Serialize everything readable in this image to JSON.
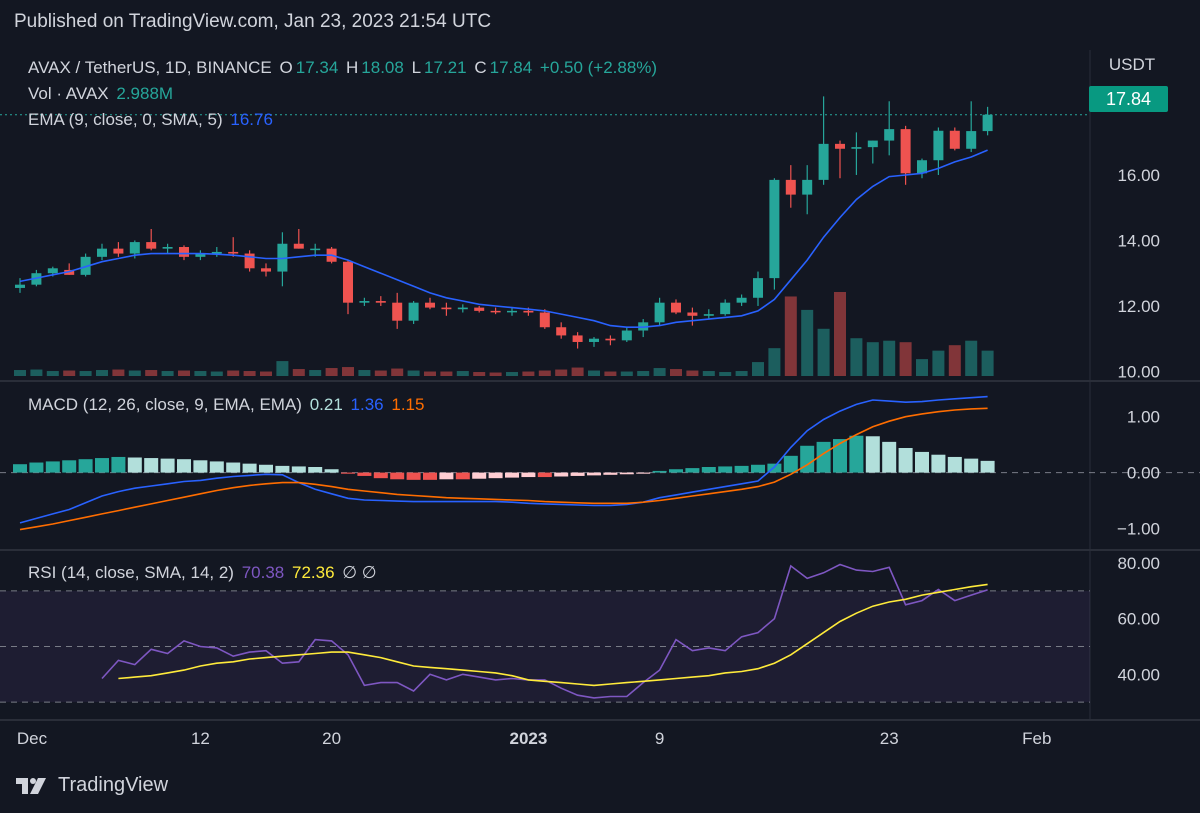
{
  "header": {
    "published": "Published on TradingView.com, Jan 23, 2023 21:54 UTC"
  },
  "brand": {
    "name": "TradingView"
  },
  "price_axis_unit": "USDT",
  "last_price_tag": "17.84",
  "colors": {
    "background": "#131722",
    "up": "#26a69a",
    "down": "#ef5350",
    "ema": "#2962ff",
    "macd_line": "#2962ff",
    "signal_line": "#ff6d00",
    "rsi": "#7e57c2",
    "rsi_ma": "#ffeb3b",
    "hist_pos_strong": "#26a69a",
    "hist_pos_weak": "#b2dfdb",
    "hist_neg_strong": "#ef5350",
    "hist_neg_weak": "#ffcdd2"
  },
  "legend": {
    "symbol": "AVAX / TetherUS, 1D, BINANCE",
    "o_label": "O",
    "o": "17.34",
    "h_label": "H",
    "h": "18.08",
    "l_label": "L",
    "l": "17.21",
    "c_label": "C",
    "c": "17.84",
    "change": "+0.50 (+2.88%)",
    "vol_label": "Vol · AVAX",
    "vol": "2.988M",
    "ema_label": "EMA (9, close, 0, SMA, 5)",
    "ema": "16.76",
    "macd_label": "MACD (12, 26, close, 9, EMA, EMA)",
    "macd_hist": "0.21",
    "macd_line": "1.36",
    "macd_signal": "1.15",
    "rsi_label": "RSI (14, close, SMA, 14, 2)",
    "rsi": "70.38",
    "rsi_ma": "72.36",
    "rsi_extra": "∅ ∅"
  },
  "chart_data": [
    {
      "type": "candlestick",
      "title": "AVAX / TetherUS, 1D, BINANCE",
      "x_ticks": [
        {
          "label": "Dec",
          "index": 0,
          "bold": false
        },
        {
          "label": "12",
          "index": 11,
          "bold": false
        },
        {
          "label": "20",
          "index": 19,
          "bold": false
        },
        {
          "label": "2023",
          "index": 31,
          "bold": true
        },
        {
          "label": "9",
          "index": 39,
          "bold": false
        },
        {
          "label": "23",
          "index": 53,
          "bold": false
        },
        {
          "label": "Feb",
          "index": 62,
          "bold": false
        }
      ],
      "y_ticks": [
        "16.00",
        "14.00",
        "12.00",
        "10.00"
      ],
      "ylim": [
        9.8,
        18.9
      ],
      "candles": [
        [
          12.55,
          12.85,
          12.4,
          12.65
        ],
        [
          12.65,
          13.1,
          12.6,
          13.0
        ],
        [
          13.0,
          13.2,
          12.9,
          13.15
        ],
        [
          13.1,
          13.3,
          12.95,
          12.95
        ],
        [
          12.95,
          13.6,
          12.9,
          13.5
        ],
        [
          13.5,
          13.9,
          13.4,
          13.75
        ],
        [
          13.75,
          13.95,
          13.5,
          13.6
        ],
        [
          13.6,
          14.0,
          13.45,
          13.95
        ],
        [
          13.95,
          14.35,
          13.7,
          13.75
        ],
        [
          13.75,
          13.9,
          13.6,
          13.8
        ],
        [
          13.8,
          13.85,
          13.4,
          13.5
        ],
        [
          13.5,
          13.7,
          13.4,
          13.6
        ],
        [
          13.6,
          13.8,
          13.5,
          13.65
        ],
        [
          13.65,
          14.1,
          13.5,
          13.6
        ],
        [
          13.6,
          13.7,
          13.05,
          13.15
        ],
        [
          13.15,
          13.3,
          12.9,
          13.05
        ],
        [
          13.05,
          14.25,
          12.6,
          13.9
        ],
        [
          13.9,
          14.35,
          13.75,
          13.75
        ],
        [
          13.75,
          13.9,
          13.5,
          13.75
        ],
        [
          13.75,
          13.8,
          13.3,
          13.35
        ],
        [
          13.35,
          13.4,
          11.75,
          12.1
        ],
        [
          12.1,
          12.25,
          12.0,
          12.15
        ],
        [
          12.15,
          12.3,
          12.0,
          12.1
        ],
        [
          12.1,
          12.4,
          11.3,
          11.55
        ],
        [
          11.55,
          12.15,
          11.45,
          12.1
        ],
        [
          12.1,
          12.25,
          11.9,
          11.95
        ],
        [
          11.95,
          12.1,
          11.7,
          11.9
        ],
        [
          11.9,
          12.05,
          11.8,
          11.95
        ],
        [
          11.95,
          12.0,
          11.8,
          11.85
        ],
        [
          11.85,
          11.95,
          11.75,
          11.82
        ],
        [
          11.82,
          11.95,
          11.7,
          11.85
        ],
        [
          11.85,
          11.95,
          11.7,
          11.8
        ],
        [
          11.8,
          11.9,
          11.3,
          11.35
        ],
        [
          11.35,
          11.5,
          11.0,
          11.1
        ],
        [
          11.1,
          11.2,
          10.7,
          10.9
        ],
        [
          10.9,
          11.05,
          10.75,
          11.0
        ],
        [
          11.0,
          11.1,
          10.8,
          10.95
        ],
        [
          10.95,
          11.35,
          10.9,
          11.25
        ],
        [
          11.25,
          11.6,
          11.05,
          11.5
        ],
        [
          11.5,
          12.25,
          11.4,
          12.1
        ],
        [
          12.1,
          12.2,
          11.75,
          11.8
        ],
        [
          11.8,
          11.95,
          11.4,
          11.7
        ],
        [
          11.7,
          11.9,
          11.6,
          11.75
        ],
        [
          11.75,
          12.2,
          11.7,
          12.1
        ],
        [
          12.1,
          12.35,
          12.0,
          12.25
        ],
        [
          12.25,
          13.05,
          12.0,
          12.85
        ],
        [
          12.85,
          15.9,
          12.5,
          15.85
        ],
        [
          15.85,
          16.3,
          15.0,
          15.4
        ],
        [
          15.4,
          16.3,
          14.8,
          15.85
        ],
        [
          15.85,
          18.4,
          15.7,
          16.95
        ],
        [
          16.95,
          17.05,
          15.9,
          16.8
        ],
        [
          16.8,
          17.3,
          16.0,
          16.85
        ],
        [
          16.85,
          17.05,
          16.35,
          17.05
        ],
        [
          17.05,
          18.25,
          16.6,
          17.4
        ],
        [
          17.4,
          17.5,
          15.7,
          16.05
        ],
        [
          16.05,
          16.5,
          15.9,
          16.45
        ],
        [
          16.45,
          17.45,
          16.0,
          17.35
        ],
        [
          17.35,
          17.45,
          16.75,
          16.8
        ],
        [
          16.8,
          18.25,
          16.7,
          17.34
        ],
        [
          17.34,
          18.08,
          17.21,
          17.84
        ]
      ]
    },
    {
      "type": "line",
      "name": "EMA (9, close, 0, SMA, 5)",
      "values": [
        12.75,
        12.85,
        12.95,
        13.05,
        13.2,
        13.35,
        13.45,
        13.55,
        13.6,
        13.6,
        13.6,
        13.6,
        13.58,
        13.55,
        13.5,
        13.45,
        13.45,
        13.5,
        13.55,
        13.55,
        13.4,
        13.2,
        13.0,
        12.8,
        12.6,
        12.4,
        12.25,
        12.15,
        12.05,
        12.0,
        11.95,
        11.9,
        11.85,
        11.75,
        11.65,
        11.55,
        11.4,
        11.35,
        11.35,
        11.4,
        11.5,
        11.55,
        11.6,
        11.65,
        11.7,
        11.85,
        12.2,
        12.8,
        13.4,
        14.1,
        14.7,
        15.25,
        15.65,
        15.95,
        16.0,
        16.05,
        16.2,
        16.4,
        16.55,
        16.76
      ]
    },
    {
      "type": "bar",
      "name": "Vol · AVAX",
      "values": [
        1.2,
        1.3,
        1.0,
        1.1,
        1.0,
        1.2,
        1.3,
        1.1,
        1.2,
        1.0,
        1.1,
        1.0,
        0.9,
        1.1,
        1.0,
        0.9,
        3.0,
        1.4,
        1.2,
        1.6,
        1.8,
        1.2,
        1.1,
        1.5,
        1.1,
        0.9,
        0.9,
        1.0,
        0.8,
        0.7,
        0.8,
        0.9,
        1.1,
        1.3,
        1.7,
        1.1,
        0.9,
        0.9,
        1.0,
        1.6,
        1.4,
        1.1,
        1.0,
        0.8,
        1.0,
        2.8,
        5.6,
        16.0,
        13.3,
        9.5,
        16.9,
        7.6,
        6.8,
        7.1,
        6.8,
        3.4,
        5.1,
        6.2,
        7.1,
        5.1
      ],
      "max_label": "2.988M"
    },
    {
      "type": "histogram_lines",
      "name": "MACD (12, 26, close, 9, EMA, EMA)",
      "y_ticks": [
        "1.00",
        "0.00",
        "-1.00"
      ],
      "ylim": [
        -1.35,
        1.55
      ],
      "histogram": [
        0.15,
        0.18,
        0.2,
        0.22,
        0.24,
        0.26,
        0.28,
        0.27,
        0.26,
        0.25,
        0.24,
        0.22,
        0.2,
        0.18,
        0.16,
        0.14,
        0.12,
        0.11,
        0.1,
        0.06,
        -0.02,
        -0.06,
        -0.1,
        -0.12,
        -0.13,
        -0.13,
        -0.12,
        -0.12,
        -0.11,
        -0.1,
        -0.09,
        -0.08,
        -0.08,
        -0.07,
        -0.06,
        -0.05,
        -0.04,
        -0.03,
        -0.02,
        0.03,
        0.06,
        0.08,
        0.1,
        0.11,
        0.12,
        0.14,
        0.16,
        0.3,
        0.48,
        0.55,
        0.6,
        0.66,
        0.65,
        0.55,
        0.44,
        0.37,
        0.32,
        0.28,
        0.25,
        0.21
      ],
      "macd": [
        -0.9,
        -0.82,
        -0.74,
        -0.66,
        -0.54,
        -0.42,
        -0.34,
        -0.28,
        -0.24,
        -0.2,
        -0.16,
        -0.14,
        -0.1,
        -0.07,
        -0.05,
        -0.03,
        -0.04,
        -0.18,
        -0.3,
        -0.38,
        -0.46,
        -0.49,
        -0.5,
        -0.51,
        -0.52,
        -0.52,
        -0.52,
        -0.52,
        -0.52,
        -0.52,
        -0.53,
        -0.55,
        -0.56,
        -0.57,
        -0.58,
        -0.59,
        -0.59,
        -0.57,
        -0.53,
        -0.45,
        -0.4,
        -0.35,
        -0.3,
        -0.25,
        -0.2,
        -0.15,
        0.1,
        0.45,
        0.75,
        0.95,
        1.1,
        1.22,
        1.3,
        1.28,
        1.26,
        1.27,
        1.3,
        1.32,
        1.34,
        1.36
      ],
      "signal": [
        -1.02,
        -0.97,
        -0.92,
        -0.86,
        -0.8,
        -0.74,
        -0.68,
        -0.62,
        -0.56,
        -0.5,
        -0.44,
        -0.38,
        -0.32,
        -0.27,
        -0.23,
        -0.2,
        -0.18,
        -0.18,
        -0.21,
        -0.25,
        -0.3,
        -0.33,
        -0.36,
        -0.39,
        -0.41,
        -0.43,
        -0.45,
        -0.46,
        -0.47,
        -0.48,
        -0.49,
        -0.5,
        -0.52,
        -0.53,
        -0.54,
        -0.55,
        -0.55,
        -0.55,
        -0.53,
        -0.5,
        -0.46,
        -0.42,
        -0.38,
        -0.34,
        -0.3,
        -0.25,
        -0.17,
        -0.03,
        0.14,
        0.34,
        0.52,
        0.68,
        0.82,
        0.92,
        1.0,
        1.05,
        1.09,
        1.12,
        1.14,
        1.15
      ]
    },
    {
      "type": "line",
      "name": "RSI (14, close, SMA, 14, 2)",
      "y_ticks": [
        "80.00",
        "60.00",
        "40.00"
      ],
      "ylim": [
        25,
        84
      ],
      "bands": [
        70,
        50,
        30
      ],
      "rsi": [
        38.5,
        45.0,
        43.5,
        49.0,
        47.5,
        52.0,
        50.0,
        49.5,
        46.5,
        48.0,
        48.5,
        44.0,
        44.5,
        52.5,
        52.0,
        47.0,
        36.0,
        37.0,
        37.0,
        34.0,
        40.0,
        38.0,
        40.0,
        39.0,
        38.0,
        38.5,
        38.0,
        38.0,
        35.0,
        32.5,
        31.5,
        32.0,
        32.0,
        37.0,
        41.5,
        52.5,
        48.5,
        49.5,
        48.5,
        53.5,
        55.0,
        60.0,
        79.0,
        74.5,
        76.5,
        79.5,
        77.5,
        77.0,
        78.5,
        65.0,
        66.5,
        70.5,
        66.5,
        68.5,
        70.38
      ],
      "rsi_ma": [
        38.5,
        39.0,
        39.5,
        40.5,
        41.5,
        43.0,
        44.0,
        44.5,
        45.5,
        46.0,
        46.5,
        47.0,
        47.5,
        48.0,
        48.0,
        47.0,
        46.0,
        44.5,
        43.0,
        42.5,
        42.0,
        41.5,
        41.0,
        40.5,
        39.5,
        38.0,
        37.5,
        37.0,
        36.5,
        36.0,
        36.5,
        37.0,
        37.5,
        38.0,
        38.5,
        39.0,
        39.5,
        40.5,
        41.0,
        42.0,
        44.0,
        47.0,
        51.0,
        55.0,
        59.0,
        62.0,
        64.5,
        66.0,
        67.0,
        68.5,
        69.5,
        70.5,
        71.5,
        72.36
      ]
    }
  ]
}
